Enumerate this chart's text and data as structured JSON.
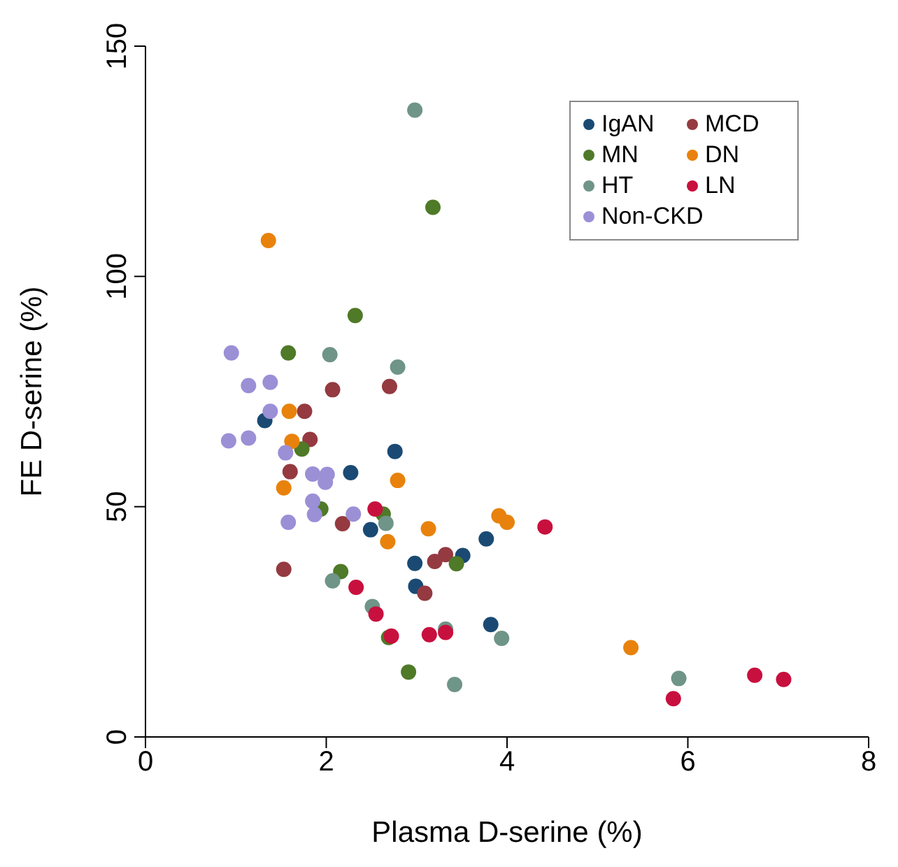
{
  "chart_data": {
    "type": "scatter",
    "xlabel": "Plasma D-serine (%)",
    "ylabel": "FE D-serine (%)",
    "xlim": [
      0,
      8
    ],
    "xticks": [
      0,
      2,
      4,
      6,
      8
    ],
    "ylim": [
      0,
      150
    ],
    "yticks": [
      0,
      50,
      100,
      150
    ],
    "grid": false,
    "legend": "top right",
    "marker": "circle",
    "series": [
      {
        "name": "IgAN",
        "color": "#1a4a73",
        "x": [
          1.32,
          2.76,
          2.27,
          2.49,
          3.77,
          2.98,
          3.51,
          2.99,
          3.82
        ],
        "values": [
          68.7,
          62.0,
          57.4,
          45.0,
          43.0,
          37.7,
          39.4,
          32.7,
          24.4
        ]
      },
      {
        "name": "MCD",
        "color": "#943a40",
        "x": [
          2.07,
          2.7,
          1.76,
          1.82,
          1.6,
          2.18,
          1.53,
          3.2,
          3.32,
          3.09
        ],
        "values": [
          75.4,
          76.1,
          70.7,
          64.6,
          57.6,
          46.3,
          36.4,
          38.1,
          39.6,
          31.2
        ]
      },
      {
        "name": "MN",
        "color": "#4f7a28",
        "x": [
          3.18,
          2.32,
          1.58,
          1.73,
          1.94,
          2.63,
          3.44,
          2.16,
          2.69,
          2.91
        ],
        "values": [
          115,
          91.5,
          83.4,
          62.5,
          49.5,
          48.4,
          37.6,
          35.9,
          21.6,
          14.1
        ]
      },
      {
        "name": "DN",
        "color": "#e8820c",
        "x": [
          1.36,
          1.59,
          1.62,
          1.53,
          2.79,
          3.13,
          2.68,
          3.91,
          4.0,
          5.37
        ],
        "values": [
          107.8,
          70.7,
          64.2,
          54.1,
          55.7,
          45.2,
          42.4,
          48.0,
          46.6,
          19.4
        ]
      },
      {
        "name": "HT",
        "color": "#6f9488",
        "x": [
          2.98,
          2.04,
          2.79,
          2.66,
          2.07,
          2.51,
          3.32,
          3.94,
          3.42,
          5.9
        ],
        "values": [
          136.1,
          83.0,
          80.3,
          46.4,
          33.9,
          28.3,
          23.4,
          21.4,
          11.4,
          12.7
        ]
      },
      {
        "name": "LN",
        "color": "#c8103e",
        "x": [
          2.54,
          4.42,
          2.33,
          2.55,
          2.72,
          3.14,
          3.32,
          5.84,
          6.74,
          7.06
        ],
        "values": [
          49.5,
          45.6,
          32.5,
          26.7,
          21.9,
          22.2,
          22.7,
          8.3,
          13.4,
          12.5
        ]
      },
      {
        "name": "Non-CKD",
        "color": "#9b8fd6",
        "x": [
          0.95,
          1.14,
          1.38,
          1.38,
          0.92,
          1.14,
          1.55,
          1.85,
          2.01,
          1.99,
          1.85,
          1.87,
          1.58,
          2.3
        ],
        "values": [
          83.4,
          76.3,
          77.0,
          70.7,
          64.3,
          64.9,
          61.7,
          57.1,
          57.0,
          55.3,
          51.2,
          48.3,
          46.6,
          48.4
        ]
      }
    ]
  }
}
